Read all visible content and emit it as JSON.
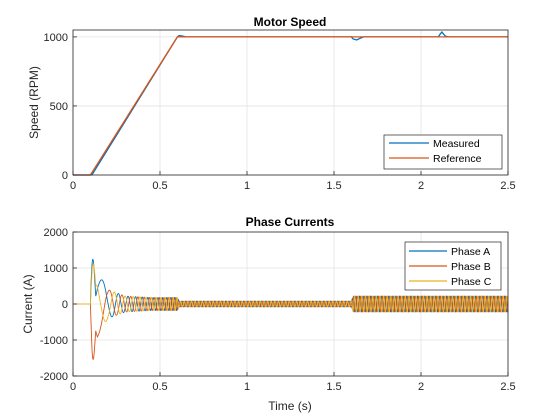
{
  "chart_data": [
    {
      "type": "line",
      "title": "Motor Speed",
      "xlabel": "",
      "ylabel": "Speed (RPM)",
      "xlim": [
        0,
        2.5
      ],
      "ylim": [
        0,
        1050
      ],
      "xticks": [
        0,
        0.5,
        1,
        1.5,
        2,
        2.5
      ],
      "xtick_labels": [
        "0",
        "0.5",
        "1",
        "1.5",
        "2",
        "2.5"
      ],
      "yticks": [
        0,
        500,
        1000
      ],
      "ytick_labels": [
        "0",
        "500",
        "1000"
      ],
      "grid": true,
      "legend_position": "bottom-right",
      "series": [
        {
          "name": "Measured",
          "color": "#0072BD",
          "x": [
            0,
            0.1,
            0.11,
            0.6,
            0.61,
            0.62,
            0.65,
            1.6,
            1.61,
            1.63,
            1.65,
            1.67,
            2.1,
            2.11,
            2.12,
            2.13,
            2.14,
            2.16,
            2.5
          ],
          "y": [
            0,
            0,
            3,
            1000,
            1010,
            1008,
            1000,
            1000,
            985,
            978,
            990,
            1000,
            1000,
            1020,
            1035,
            1020,
            1005,
            1000,
            1000
          ]
        },
        {
          "name": "Reference",
          "color": "#D95319",
          "x": [
            0,
            0.1,
            0.6,
            2.5
          ],
          "y": [
            0,
            0,
            1000,
            1000
          ]
        }
      ]
    },
    {
      "type": "line",
      "title": "Phase Currents",
      "xlabel": "Time (s)",
      "ylabel": "Current (A)",
      "xlim": [
        0,
        2.5
      ],
      "ylim": [
        -2000,
        2000
      ],
      "xticks": [
        0,
        0.5,
        1,
        1.5,
        2,
        2.5
      ],
      "xtick_labels": [
        "0",
        "0.5",
        "1",
        "1.5",
        "2",
        "2.5"
      ],
      "yticks": [
        -2000,
        -1000,
        0,
        1000,
        2000
      ],
      "ytick_labels": [
        "-2000",
        "-1000",
        "0",
        "1000",
        "2000"
      ],
      "grid": true,
      "legend_position": "top-right",
      "series": [
        {
          "name": "Phase A",
          "color": "#0072BD",
          "phase_deg": 0
        },
        {
          "name": "Phase B",
          "color": "#D95319",
          "phase_deg": -120
        },
        {
          "name": "Phase C",
          "color": "#EDB120",
          "phase_deg": 120
        }
      ],
      "envelope": {
        "description_points_t": [
          0,
          0.1,
          0.11,
          0.13,
          0.2,
          0.3,
          0.45,
          0.6,
          0.61,
          1.6,
          1.61,
          2.1,
          2.12,
          2.5
        ],
        "amplitude": [
          0,
          0,
          1450,
          1000,
          400,
          220,
          180,
          180,
          80,
          80,
          220,
          220,
          220,
          220
        ],
        "frequency_hz_points_t": [
          0.1,
          0.6,
          2.5
        ],
        "frequency_hz": [
          0,
          48,
          48
        ]
      }
    }
  ]
}
